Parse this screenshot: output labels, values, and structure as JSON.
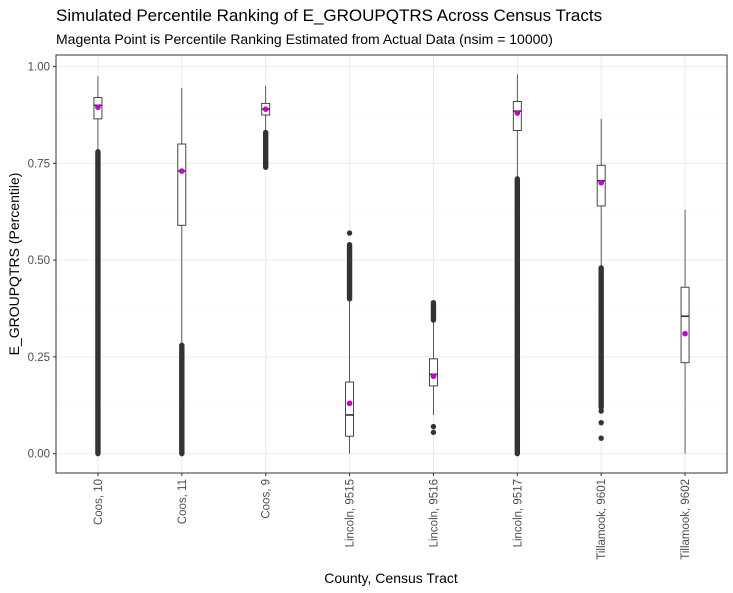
{
  "chart_data": {
    "type": "box",
    "title": "Simulated Percentile Ranking of E_GROUPQTRS Across Census Tracts",
    "subtitle": "Magenta Point is Percentile Ranking Estimated from Actual Data (nsim = 10000)",
    "xlabel": "County, Census Tract",
    "ylabel": "E_GROUPQTRS (Percentile)",
    "ylim": [
      -0.05,
      1.03
    ],
    "yticks": [
      0.0,
      0.25,
      0.5,
      0.75,
      1.0
    ],
    "ytick_labels": [
      "0.00",
      "0.25",
      "0.50",
      "0.75",
      "1.00"
    ],
    "grid": true,
    "colors": {
      "box": "#333333",
      "outlier": "#333333",
      "actual_point": "#cc00cc",
      "grid_major": "#ebebeb",
      "grid_minor": "#f5f5f5"
    },
    "categories": [
      "Coos, 10",
      "Coos, 11",
      "Coos, 9",
      "Lincoln, 9515",
      "Lincoln, 9516",
      "Lincoln, 9517",
      "Tillamook, 9601",
      "Tillamook, 9602"
    ],
    "boxes": [
      {
        "whisker_low": 0.78,
        "q1": 0.865,
        "median": 0.9,
        "q3": 0.92,
        "whisker_high": 0.975,
        "actual": 0.895,
        "outlier_ranges": [
          [
            0.0,
            0.78
          ]
        ]
      },
      {
        "whisker_low": 0.28,
        "q1": 0.59,
        "median": 0.73,
        "q3": 0.8,
        "whisker_high": 0.945,
        "actual": 0.73,
        "outlier_ranges": [
          [
            0.0,
            0.28
          ]
        ]
      },
      {
        "whisker_low": 0.83,
        "q1": 0.875,
        "median": 0.89,
        "q3": 0.905,
        "whisker_high": 0.95,
        "actual": 0.89,
        "outlier_ranges": [
          [
            0.74,
            0.83
          ]
        ]
      },
      {
        "whisker_low": 0.0,
        "q1": 0.045,
        "median": 0.1,
        "q3": 0.185,
        "whisker_high": 0.4,
        "actual": 0.13,
        "outlier_ranges": [
          [
            0.4,
            0.54
          ]
        ],
        "outliers": [
          0.57
        ]
      },
      {
        "whisker_low": 0.1,
        "q1": 0.175,
        "median": 0.205,
        "q3": 0.245,
        "whisker_high": 0.345,
        "actual": 0.2,
        "outlier_ranges": [
          [
            0.345,
            0.39
          ]
        ],
        "outliers": [
          0.055,
          0.07
        ]
      },
      {
        "whisker_low": 0.71,
        "q1": 0.835,
        "median": 0.885,
        "q3": 0.91,
        "whisker_high": 0.98,
        "actual": 0.88,
        "outlier_ranges": [
          [
            0.0,
            0.71
          ]
        ]
      },
      {
        "whisker_low": 0.48,
        "q1": 0.64,
        "median": 0.705,
        "q3": 0.745,
        "whisker_high": 0.865,
        "actual": 0.7,
        "outlier_ranges": [
          [
            0.12,
            0.48
          ]
        ],
        "outliers": [
          0.04,
          0.08,
          0.11
        ]
      },
      {
        "whisker_low": 0.0,
        "q1": 0.235,
        "median": 0.355,
        "q3": 0.43,
        "whisker_high": 0.63,
        "actual": 0.31,
        "outlier_ranges": []
      }
    ]
  }
}
